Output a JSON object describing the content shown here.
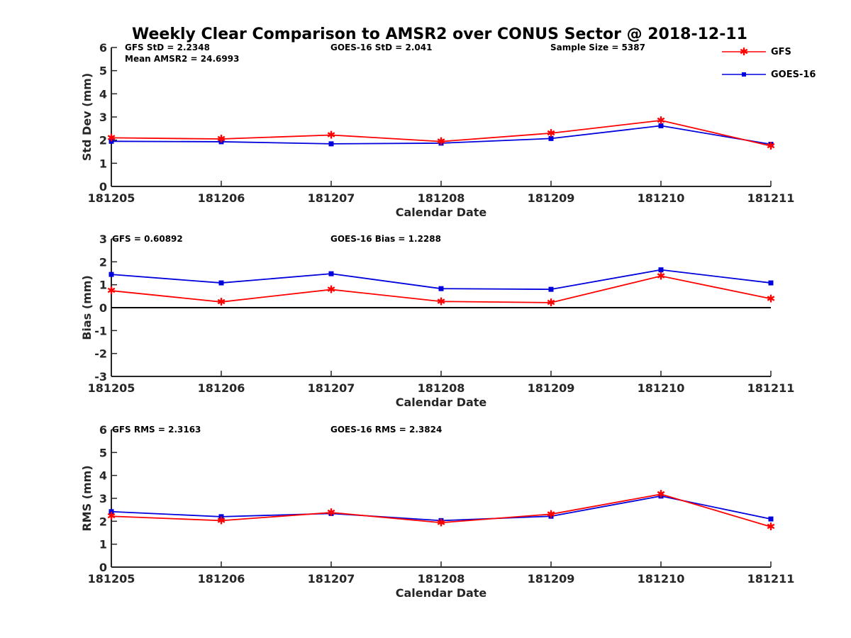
{
  "title": "Weekly Clear Comparison to AMSR2 over CONUS Sector @ 2018-12-11",
  "legend": [
    "GFS",
    "GOES-16"
  ],
  "colors": {
    "GFS": "#ff0000",
    "GOES-16": "#0000dd",
    "zero_line": "#000000"
  },
  "chart_data": [
    {
      "type": "line",
      "categories": [
        "181205",
        "181206",
        "181207",
        "181208",
        "181209",
        "181210",
        "181211"
      ],
      "xlabel": "Calendar Date",
      "ylabel": "Std Dev (mm)",
      "ylim": [
        0,
        6
      ],
      "yticks": [
        0,
        1,
        2,
        3,
        4,
        5,
        6
      ],
      "series": [
        {
          "name": "GFS",
          "values": [
            2.1,
            2.05,
            2.22,
            1.94,
            2.3,
            2.85,
            1.75
          ]
        },
        {
          "name": "GOES-16",
          "values": [
            1.95,
            1.93,
            1.84,
            1.87,
            2.07,
            2.62,
            1.82
          ]
        }
      ],
      "annotations": {
        "gfs_std": "GFS StD = 2.2348",
        "mean_amsr2": "Mean AMSR2 = 24.6993",
        "goes_std": "GOES-16 StD = 2.041",
        "sample_size": "Sample Size = 5387"
      }
    },
    {
      "type": "line",
      "categories": [
        "181205",
        "181206",
        "181207",
        "181208",
        "181209",
        "181210",
        "181211"
      ],
      "xlabel": "Calendar Date",
      "ylabel": "Bias (mm)",
      "ylim": [
        -3,
        3
      ],
      "yticks": [
        -3,
        -2,
        -1,
        0,
        1,
        2,
        3
      ],
      "zero_line": true,
      "series": [
        {
          "name": "GFS",
          "values": [
            0.74,
            0.25,
            0.79,
            0.27,
            0.22,
            1.38,
            0.39
          ]
        },
        {
          "name": "GOES-16",
          "values": [
            1.45,
            1.08,
            1.48,
            0.83,
            0.8,
            1.65,
            1.08
          ]
        }
      ],
      "annotations": {
        "gfs_bias": "GFS = 0.60892",
        "goes_bias": "GOES-16 Bias  = 1.2288"
      }
    },
    {
      "type": "line",
      "categories": [
        "181205",
        "181206",
        "181207",
        "181208",
        "181209",
        "181210",
        "181211"
      ],
      "xlabel": "Calendar Date",
      "ylabel": "RMS (mm)",
      "ylim": [
        0,
        6
      ],
      "yticks": [
        0,
        1,
        2,
        3,
        4,
        5,
        6
      ],
      "series": [
        {
          "name": "GFS",
          "values": [
            2.22,
            2.03,
            2.38,
            1.94,
            2.31,
            3.18,
            1.76
          ]
        },
        {
          "name": "GOES-16",
          "values": [
            2.42,
            2.2,
            2.34,
            2.03,
            2.22,
            3.1,
            2.1
          ]
        }
      ],
      "annotations": {
        "gfs_rms": "GFS RMS = 2.3163",
        "goes_rms": "GOES-16 RMS = 2.3824"
      }
    }
  ]
}
